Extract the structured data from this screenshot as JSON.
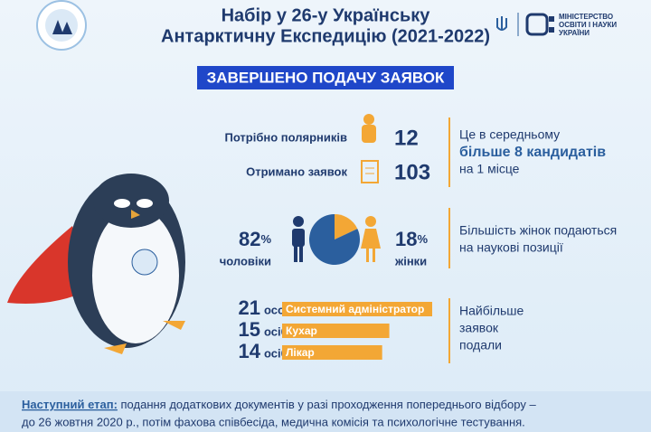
{
  "header": {
    "title_line1": "Набір у 26-у Українську",
    "title_line2": "Антарктичну Експедицію (2021-2022)",
    "ministry": [
      "МІНІСТЕРСТВО",
      "ОСВІТИ І НАУКИ",
      "УКРАЇНИ"
    ]
  },
  "banner": "ЗАВЕРШЕНО ПОДАЧУ ЗАЯВОК",
  "stats": [
    {
      "label": "Потрібно полярників",
      "value": 12
    },
    {
      "label": "Отримано заявок",
      "value": 103
    }
  ],
  "stats_note": [
    "Це в середньому",
    "більше 8 кандидатів",
    "на 1 місце"
  ],
  "gender": [
    {
      "value": 82,
      "unit": "%",
      "label": "чоловіки",
      "color": "#2b5f9e"
    },
    {
      "value": 18,
      "unit": "%",
      "label": "жінки",
      "color": "#f3a735"
    }
  ],
  "gender_note": [
    "Більшість жінок подаються",
    "на наукові позиції"
  ],
  "roles": [
    {
      "count": 21,
      "unit": "особа",
      "name": "Системний адміністратор"
    },
    {
      "count": 15,
      "unit": "осіб",
      "name": "Кухар"
    },
    {
      "count": 14,
      "unit": "осіб",
      "name": "Лікар"
    }
  ],
  "roles_note": [
    "Найбільше",
    "заявок",
    "подали"
  ],
  "footer": {
    "label": "Наступний етап:",
    "line1": " подання додаткових документів у разі проходження попереднього відбору –",
    "line2": "до 26 жовтня 2020 р., потім фахова співбесіда, медична комісія та психологічне тестування."
  }
}
